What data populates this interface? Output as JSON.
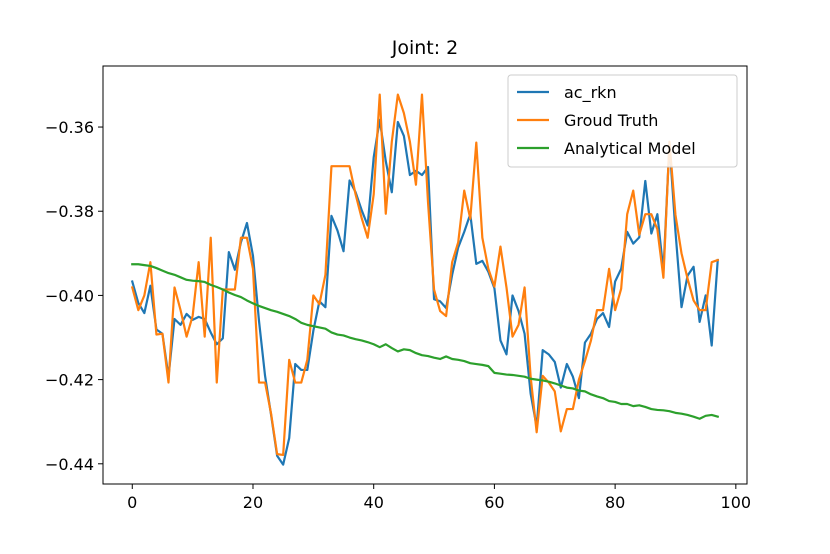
{
  "chart_data": {
    "type": "line",
    "title": "Joint: 2",
    "xlabel": "",
    "ylabel": "",
    "xlim": [
      -4.85,
      101.85
    ],
    "ylim": [
      -0.4448,
      -0.3455
    ],
    "xticks": [
      0,
      20,
      40,
      60,
      80,
      100
    ],
    "xtick_labels": [
      "0",
      "20",
      "40",
      "60",
      "80",
      "100"
    ],
    "yticks": [
      -0.36,
      -0.38,
      -0.4,
      -0.42,
      -0.44
    ],
    "ytick_labels": [
      "−0.36",
      "−0.38",
      "−0.40",
      "−0.42",
      "−0.44"
    ],
    "grid": false,
    "legend_position": "top-right",
    "series": [
      {
        "name": "ac_rkn",
        "color": "#1f77b4",
        "values": [
          -0.3967,
          -0.4018,
          -0.4042,
          -0.3977,
          -0.4081,
          -0.4091,
          -0.4193,
          -0.4056,
          -0.407,
          -0.4044,
          -0.4058,
          -0.4051,
          -0.4056,
          -0.4088,
          -0.4116,
          -0.4102,
          -0.3897,
          -0.3939,
          -0.3874,
          -0.3828,
          -0.3906,
          -0.4061,
          -0.4191,
          -0.4284,
          -0.4381,
          -0.4402,
          -0.4339,
          -0.4163,
          -0.4177,
          -0.4177,
          -0.4084,
          -0.4014,
          -0.4028,
          -0.3811,
          -0.3846,
          -0.3895,
          -0.3727,
          -0.3755,
          -0.3797,
          -0.3834,
          -0.3672,
          -0.3583,
          -0.3681,
          -0.3755,
          -0.3588,
          -0.3621,
          -0.3714,
          -0.3704,
          -0.3714,
          -0.3695,
          -0.4009,
          -0.4014,
          -0.403,
          -0.3951,
          -0.3886,
          -0.3849,
          -0.3807,
          -0.3925,
          -0.3918,
          -0.3944,
          -0.3983,
          -0.4107,
          -0.414,
          -0.4,
          -0.4037,
          -0.4091,
          -0.4233,
          -0.4312,
          -0.413,
          -0.414,
          -0.4158,
          -0.4219,
          -0.4163,
          -0.4193,
          -0.4244,
          -0.4112,
          -0.4091,
          -0.4056,
          -0.4042,
          -0.4075,
          -0.3967,
          -0.3937,
          -0.3849,
          -0.3877,
          -0.3862,
          -0.3728,
          -0.3853,
          -0.3807,
          -0.3942,
          -0.3639,
          -0.3849,
          -0.4028,
          -0.3953,
          -0.3932,
          -0.4063,
          -0.4,
          -0.4119,
          -0.3916
        ]
      },
      {
        "name": "Groud Truth",
        "color": "#ff7f0e",
        "values": [
          -0.3981,
          -0.4035,
          -0.4,
          -0.3921,
          -0.4093,
          -0.4091,
          -0.4207,
          -0.3981,
          -0.4035,
          -0.4098,
          -0.4049,
          -0.3921,
          -0.4098,
          -0.3863,
          -0.4207,
          -0.3986,
          -0.3986,
          -0.3986,
          -0.3863,
          -0.3863,
          -0.3937,
          -0.4207,
          -0.4207,
          -0.4281,
          -0.4377,
          -0.4379,
          -0.4153,
          -0.4207,
          -0.4207,
          -0.4153,
          -0.4,
          -0.4021,
          -0.3951,
          -0.3693,
          -0.3693,
          -0.3693,
          -0.3693,
          -0.376,
          -0.3816,
          -0.3863,
          -0.376,
          -0.3523,
          -0.3806,
          -0.3635,
          -0.3523,
          -0.3567,
          -0.3635,
          -0.3737,
          -0.3523,
          -0.3779,
          -0.3986,
          -0.4037,
          -0.4049,
          -0.3921,
          -0.3874,
          -0.3751,
          -0.3818,
          -0.3637,
          -0.3863,
          -0.3937,
          -0.3979,
          -0.3884,
          -0.3981,
          -0.4098,
          -0.407,
          -0.3981,
          -0.4193,
          -0.4325,
          -0.4191,
          -0.4207,
          -0.4228,
          -0.4323,
          -0.427,
          -0.427,
          -0.42,
          -0.4156,
          -0.4107,
          -0.4035,
          -0.4035,
          -0.3937,
          -0.4035,
          -0.3984,
          -0.3807,
          -0.3751,
          -0.3856,
          -0.3807,
          -0.3807,
          -0.3843,
          -0.3958,
          -0.3635,
          -0.3809,
          -0.39,
          -0.396,
          -0.4012,
          -0.4035,
          -0.4035,
          -0.3921,
          -0.3916
        ]
      },
      {
        "name": "Analytical Model",
        "color": "#2ca02c",
        "values": [
          -0.3926,
          -0.3926,
          -0.3928,
          -0.393,
          -0.3935,
          -0.3941,
          -0.3947,
          -0.3951,
          -0.3957,
          -0.3963,
          -0.3965,
          -0.3966,
          -0.3968,
          -0.3975,
          -0.398,
          -0.3986,
          -0.3993,
          -0.3999,
          -0.4004,
          -0.4012,
          -0.4019,
          -0.4025,
          -0.403,
          -0.4035,
          -0.4039,
          -0.4044,
          -0.4049,
          -0.4056,
          -0.4065,
          -0.407,
          -0.4073,
          -0.4076,
          -0.4079,
          -0.4088,
          -0.4093,
          -0.4095,
          -0.41,
          -0.4104,
          -0.4107,
          -0.4111,
          -0.4116,
          -0.4123,
          -0.4116,
          -0.4125,
          -0.4133,
          -0.4128,
          -0.413,
          -0.4137,
          -0.4142,
          -0.4144,
          -0.4148,
          -0.4151,
          -0.4145,
          -0.4151,
          -0.4153,
          -0.4156,
          -0.4161,
          -0.4163,
          -0.4165,
          -0.4168,
          -0.4184,
          -0.4186,
          -0.4188,
          -0.4189,
          -0.4191,
          -0.4193,
          -0.4198,
          -0.42,
          -0.4202,
          -0.4205,
          -0.4209,
          -0.4214,
          -0.4219,
          -0.4221,
          -0.4226,
          -0.4228,
          -0.4235,
          -0.424,
          -0.4244,
          -0.4251,
          -0.4253,
          -0.4258,
          -0.4258,
          -0.4263,
          -0.4261,
          -0.4265,
          -0.427,
          -0.4272,
          -0.4273,
          -0.4275,
          -0.4279,
          -0.4281,
          -0.4284,
          -0.4288,
          -0.4293,
          -0.4286,
          -0.4284,
          -0.4288
        ]
      }
    ]
  }
}
